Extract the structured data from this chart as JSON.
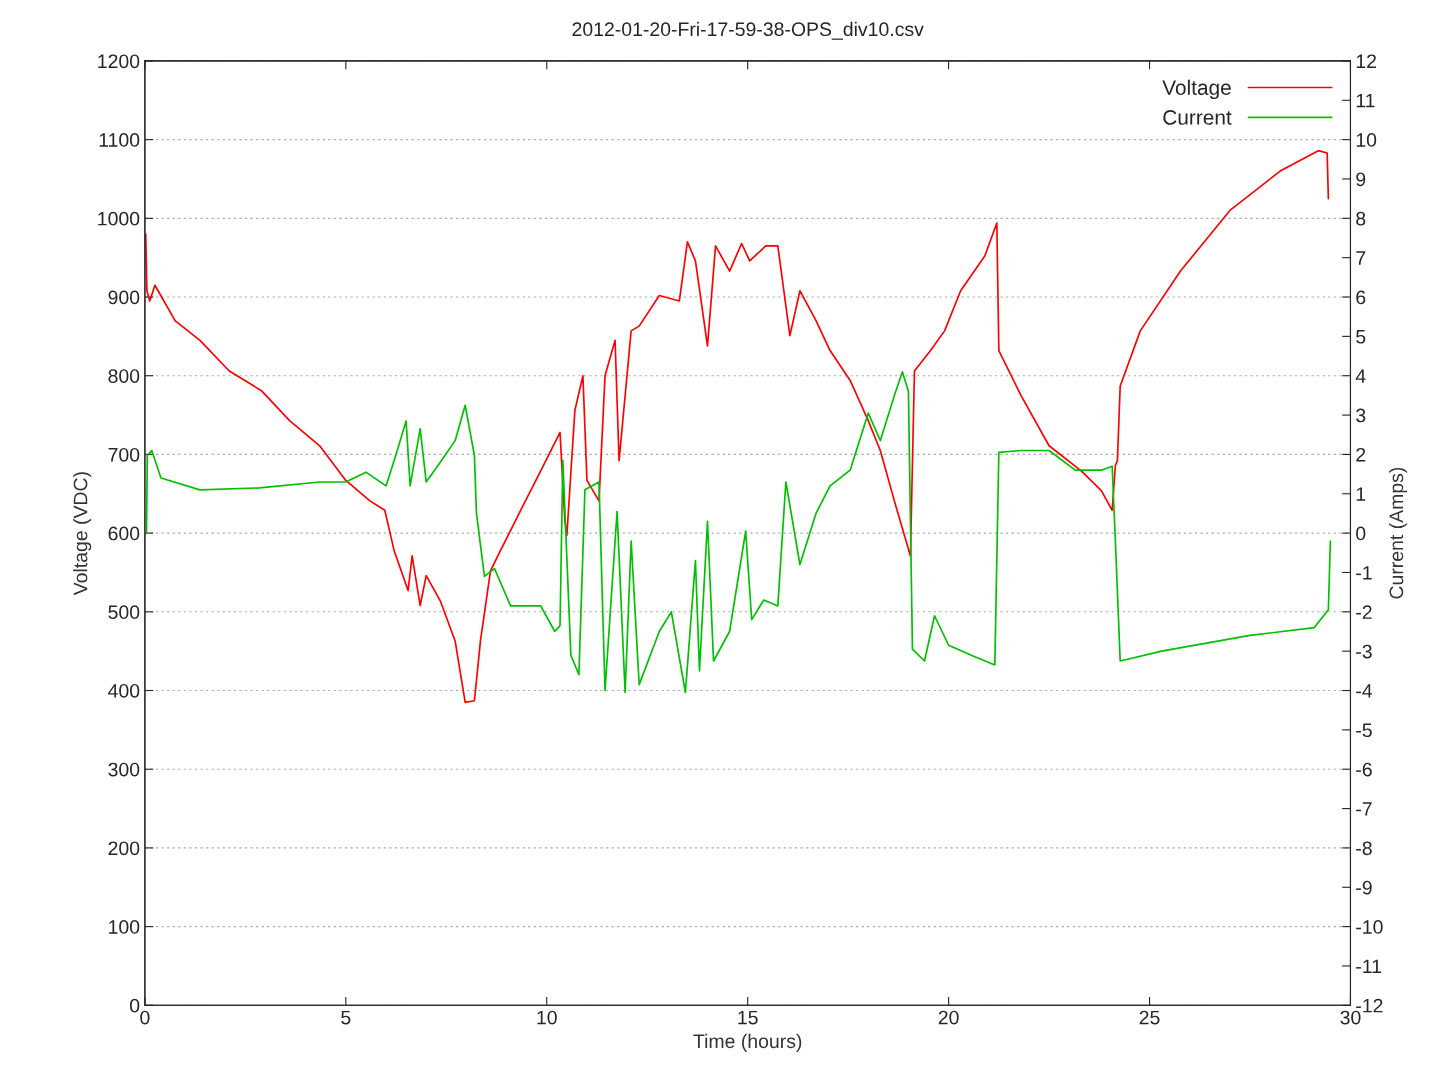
{
  "chart_data": {
    "type": "line",
    "title": "2012-01-20-Fri-17-59-38-OPS_div10.csv",
    "xlabel": "Time (hours)",
    "ylabel": "Voltage (VDC)",
    "y2label": "Current (Amps)",
    "xlim": [
      0,
      30
    ],
    "xticks": [
      0,
      5,
      10,
      15,
      20,
      25,
      30
    ],
    "ylim": [
      0,
      1200
    ],
    "yticks": [
      0,
      100,
      200,
      300,
      400,
      500,
      600,
      700,
      800,
      900,
      1000,
      1100,
      1200
    ],
    "y2lim": [
      -12,
      12
    ],
    "y2ticks": [
      -12,
      -11,
      -10,
      -9,
      -8,
      -7,
      -6,
      -5,
      -4,
      -3,
      -2,
      -1,
      0,
      1,
      2,
      3,
      4,
      5,
      6,
      7,
      8,
      9,
      10,
      11,
      12
    ],
    "grid": "y",
    "legend": "top right",
    "line_style": "solid",
    "marker": "none",
    "series": [
      {
        "name": "Voltage",
        "color": "#ff0000",
        "x": [
          0.02,
          0.05,
          0.12,
          0.25,
          0.75,
          1.37,
          2.1,
          2.9,
          3.6,
          4.35,
          5.0,
          5.6,
          5.97,
          6.2,
          6.55,
          6.65,
          6.85,
          7.0,
          7.35,
          7.72,
          7.97,
          8.2,
          8.35,
          8.6,
          8.85,
          9.35,
          9.85,
          10.33,
          10.45,
          10.5,
          10.7,
          10.9,
          11.0,
          11.3,
          11.45,
          11.7,
          11.8,
          12.1,
          12.3,
          12.8,
          13.3,
          13.5,
          13.7,
          14.0,
          14.2,
          14.55,
          14.85,
          15.05,
          15.45,
          15.75,
          16.05,
          16.3,
          16.7,
          17.05,
          17.55,
          18.0,
          18.3,
          18.65,
          19.05,
          19.15,
          19.55,
          19.9,
          20.3,
          20.9,
          21.2,
          21.25,
          21.8,
          22.5,
          23.3,
          23.8,
          24.07,
          24.15,
          24.2,
          24.27,
          24.77,
          25.77,
          27.0,
          28.25,
          29.2,
          29.42,
          29.45
        ],
        "values": [
          980,
          908,
          895,
          915,
          870,
          845,
          806,
          781,
          743,
          711,
          667,
          641,
          629,
          578,
          527,
          571,
          508,
          546,
          514,
          463,
          385,
          387,
          463,
          552,
          578,
          629,
          679,
          728,
          616,
          597,
          756,
          800,
          667,
          641,
          800,
          845,
          692,
          857,
          863,
          902,
          895,
          970,
          946,
          838,
          965,
          933,
          968,
          946,
          965,
          965,
          851,
          908,
          870,
          832,
          794,
          743,
          705,
          641,
          571,
          806,
          832,
          857,
          908,
          952,
          994,
          832,
          775,
          711,
          679,
          654,
          629,
          686,
          692,
          787,
          857,
          933,
          1010,
          1060,
          1086,
          1083,
          1025
        ]
      },
      {
        "name": "Current",
        "color": "#00c000",
        "axis": "y2",
        "x": [
          0.04,
          0.06,
          0.17,
          0.4,
          1.37,
          2.85,
          4.35,
          5.0,
          5.5,
          6.0,
          6.25,
          6.5,
          6.6,
          6.85,
          7.0,
          7.35,
          7.72,
          7.97,
          8.2,
          8.25,
          8.45,
          8.7,
          9.1,
          9.85,
          10.2,
          10.33,
          10.4,
          10.6,
          10.8,
          10.95,
          11.3,
          11.45,
          11.75,
          11.95,
          12.1,
          12.3,
          12.8,
          13.1,
          13.45,
          13.7,
          13.8,
          14.0,
          14.15,
          14.55,
          14.95,
          15.1,
          15.4,
          15.75,
          15.95,
          16.3,
          16.7,
          17.05,
          17.55,
          18.0,
          18.3,
          18.65,
          18.85,
          19.0,
          19.1,
          19.4,
          19.65,
          20.0,
          20.55,
          21.15,
          21.25,
          21.8,
          22.5,
          23.15,
          23.8,
          24.07,
          24.15,
          24.27,
          25.3,
          27.5,
          29.1,
          29.45,
          29.5
        ],
        "values": [
          0,
          1.97,
          2.1,
          1.4,
          1.1,
          1.15,
          1.3,
          1.3,
          1.55,
          1.2,
          2.0,
          2.85,
          1.2,
          2.65,
          1.3,
          1.8,
          2.35,
          3.25,
          1.97,
          0.5,
          -1.1,
          -0.9,
          -1.85,
          -1.85,
          -2.5,
          -2.35,
          1.85,
          -3.1,
          -3.6,
          1.1,
          1.3,
          -4.0,
          0.55,
          -4.05,
          -0.2,
          -3.85,
          -2.5,
          -2.0,
          -4.05,
          -0.7,
          -3.5,
          0.3,
          -3.25,
          -2.5,
          0.05,
          -2.2,
          -1.7,
          -1.85,
          1.3,
          -0.8,
          0.5,
          1.2,
          1.6,
          3.05,
          2.35,
          3.5,
          4.1,
          3.6,
          -2.95,
          -3.25,
          -2.1,
          -2.85,
          -3.1,
          -3.35,
          2.05,
          2.1,
          2.1,
          1.6,
          1.6,
          1.7,
          -0.2,
          -3.25,
          -3.0,
          -2.6,
          -2.4,
          -1.95,
          -0.2
        ]
      }
    ]
  }
}
